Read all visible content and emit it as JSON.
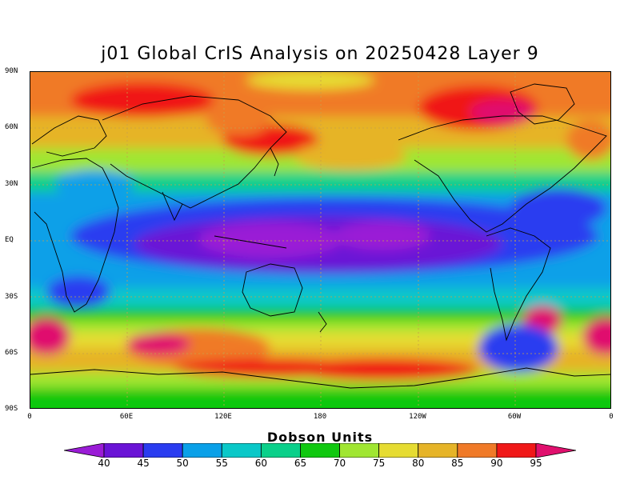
{
  "title": "j01 Global CrIS Analysis on 20250428 Layer 9",
  "colorbar": {
    "title": "Dobson Units",
    "levels": [
      "40",
      "45",
      "50",
      "55",
      "60",
      "65",
      "70",
      "75",
      "80",
      "85",
      "90",
      "95"
    ],
    "colors": [
      "#9a1cd6",
      "#6a14d6",
      "#2a3cf0",
      "#0aa0e8",
      "#0ac8c8",
      "#0ad08a",
      "#10c810",
      "#a0e632",
      "#e6dc32",
      "#e6b428",
      "#f07a28",
      "#f01818",
      "#e0106e"
    ]
  },
  "axes": {
    "lat_labels": [
      "90N",
      "60N",
      "30N",
      "EQ",
      "30S",
      "60S",
      "90S"
    ],
    "lon_labels": [
      "0",
      "60E",
      "120E",
      "180",
      "120W",
      "60W",
      "0"
    ]
  }
}
